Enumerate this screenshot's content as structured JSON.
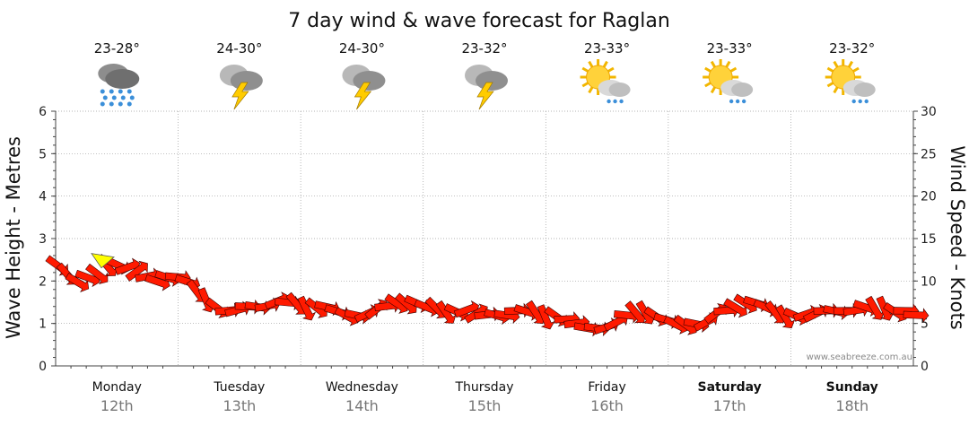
{
  "chart_data": {
    "type": "line",
    "title": "7 day wind & wave forecast for Raglan",
    "ylabel_left": "Wave Height - Metres",
    "ylabel_right": "Wind Speed - Knots",
    "ylim_left": [
      0,
      6
    ],
    "ylim_right": [
      0,
      30
    ],
    "yticks_left": [
      "0",
      "1",
      "2",
      "3",
      "4",
      "5",
      "6"
    ],
    "yticks_right": [
      "0",
      "5",
      "10",
      "15",
      "20",
      "25",
      "30"
    ],
    "grid": true,
    "credit": "www.seabreeze.com.au",
    "days": [
      {
        "day": "Monday",
        "date": "12th",
        "temp": "23-28°",
        "icon": "rain-cloud-icon",
        "weekend": false
      },
      {
        "day": "Tuesday",
        "date": "13th",
        "temp": "24-30°",
        "icon": "thunderstorm-icon",
        "weekend": false
      },
      {
        "day": "Wednesday",
        "date": "14th",
        "temp": "24-30°",
        "icon": "thunderstorm-icon",
        "weekend": false
      },
      {
        "day": "Thursday",
        "date": "15th",
        "temp": "23-32°",
        "icon": "thunderstorm-icon",
        "weekend": false
      },
      {
        "day": "Friday",
        "date": "16th",
        "temp": "23-33°",
        "icon": "sun-showers-icon",
        "weekend": false
      },
      {
        "day": "Saturday",
        "date": "17th",
        "temp": "23-33°",
        "icon": "sun-showers-icon",
        "weekend": true
      },
      {
        "day": "Sunday",
        "date": "18th",
        "temp": "23-32°",
        "icon": "sun-showers-icon",
        "weekend": true
      }
    ],
    "wind_speed_knots": [
      12,
      11,
      10,
      10.5,
      11,
      12,
      12,
      11.5,
      11,
      10.5,
      10,
      10.5,
      10.5,
      10,
      9,
      8,
      7,
      6.5,
      6.5,
      7,
      7,
      7,
      7.5,
      7.5,
      7.5,
      7,
      7,
      7,
      6.5,
      6,
      6,
      6,
      6.5,
      7,
      7.5,
      7.5,
      7.5,
      7,
      7,
      6.5,
      6.5,
      6.5,
      6,
      6,
      6,
      6,
      6.5,
      6.5,
      6.5,
      6,
      6,
      5.5,
      5,
      4.5,
      4.5,
      4.5,
      5,
      6,
      6.5,
      6.5,
      6,
      5.5,
      5,
      5,
      5,
      5,
      6,
      6.5,
      7,
      7.5,
      7.5,
      7,
      6.5,
      6,
      6,
      6,
      6,
      6.5,
      6.5,
      6.5,
      6.5,
      7,
      7,
      7,
      6.5,
      6.5,
      6
    ],
    "wave_height_m": [
      2.5
    ]
  }
}
